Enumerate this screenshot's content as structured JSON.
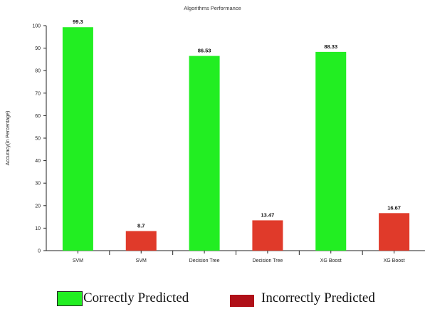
{
  "chart_data": {
    "type": "bar",
    "title": "Algorithms Performance",
    "ylabel": "Accuracy(in Percentage)",
    "xlabel": "",
    "ylim": [
      0,
      100
    ],
    "yticks": [
      0,
      10,
      20,
      30,
      40,
      50,
      60,
      70,
      80,
      90,
      100
    ],
    "grid": false,
    "legend_position": "bottom",
    "categories": [
      "SVM",
      "SVM",
      "Decision Tree",
      "Decision Tree",
      "XG Boost",
      "XG Boost"
    ],
    "values": [
      99.3,
      8.7,
      86.53,
      13.47,
      88.33,
      16.67
    ],
    "value_labels": [
      "99.3",
      "8.7",
      "86.53",
      "13.47",
      "88.33",
      "16.67"
    ],
    "bar_series": [
      "correct",
      "incorrect",
      "correct",
      "incorrect",
      "correct",
      "incorrect"
    ],
    "series": [
      {
        "name": "Correctly Predicted",
        "key": "correct",
        "color": "#22ee22"
      },
      {
        "name": "Incorrectly Predicted",
        "key": "incorrect",
        "color": "#e03a2a",
        "legend_color": "#b01018"
      }
    ]
  }
}
